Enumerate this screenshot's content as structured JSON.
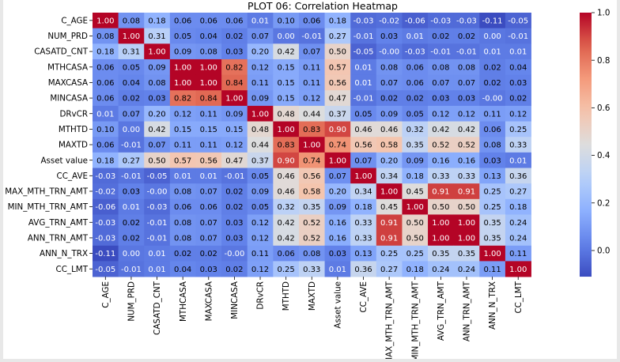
{
  "chart_data": {
    "type": "heatmap",
    "title": "PLOT 06: Correlation Heatmap",
    "xlabel": "",
    "ylabel": "",
    "colormap": "coolwarm",
    "vmin": -0.11,
    "vmax": 1.0,
    "colorbar_ticks": [
      "0.0",
      "0.2",
      "0.4",
      "0.6",
      "0.8",
      "1.0"
    ],
    "annot_text_light": "#ffffff",
    "annot_text_dark": "#000000",
    "labels": [
      "C_AGE",
      "NUM_PRD",
      "CASATD_CNT",
      "MTHCASA",
      "MAXCASA",
      "MINCASA",
      "DRvCR",
      "MTHTD",
      "MAXTD",
      "Asset value",
      "CC_AVE",
      "MAX_MTH_TRN_AMT",
      "MIN_MTH_TRN_AMT",
      "AVG_TRN_AMT",
      "ANN_TRN_AMT",
      "ANN_N_TRX",
      "CC_LMT"
    ],
    "matrix": [
      [
        "1.00",
        "0.08",
        "0.18",
        "0.06",
        "0.06",
        "0.06",
        "0.01",
        "0.10",
        "0.06",
        "0.18",
        "-0.03",
        "-0.02",
        "-0.06",
        "-0.03",
        "-0.03",
        "-0.11",
        "-0.05"
      ],
      [
        "0.08",
        "1.00",
        "0.31",
        "0.05",
        "0.04",
        "0.02",
        "0.07",
        "0.00",
        "-0.01",
        "0.27",
        "-0.01",
        "0.03",
        "0.01",
        "0.02",
        "0.02",
        "0.00",
        "-0.01"
      ],
      [
        "0.18",
        "0.31",
        "1.00",
        "0.09",
        "0.08",
        "0.03",
        "0.20",
        "0.42",
        "0.07",
        "0.50",
        "-0.05",
        "-0.00",
        "-0.03",
        "-0.01",
        "-0.01",
        "0.01",
        "0.01"
      ],
      [
        "0.06",
        "0.05",
        "0.09",
        "1.00",
        "1.00",
        "0.82",
        "0.12",
        "0.15",
        "0.11",
        "0.57",
        "0.01",
        "0.08",
        "0.06",
        "0.08",
        "0.08",
        "0.02",
        "0.04"
      ],
      [
        "0.06",
        "0.04",
        "0.08",
        "1.00",
        "1.00",
        "0.84",
        "0.11",
        "0.15",
        "0.11",
        "0.56",
        "0.01",
        "0.07",
        "0.06",
        "0.07",
        "0.07",
        "0.02",
        "0.03"
      ],
      [
        "0.06",
        "0.02",
        "0.03",
        "0.82",
        "0.84",
        "1.00",
        "0.09",
        "0.15",
        "0.12",
        "0.47",
        "-0.01",
        "0.02",
        "0.02",
        "0.03",
        "0.03",
        "-0.00",
        "0.02"
      ],
      [
        "0.01",
        "0.07",
        "0.20",
        "0.12",
        "0.11",
        "0.09",
        "1.00",
        "0.48",
        "0.44",
        "0.37",
        "0.05",
        "0.09",
        "0.05",
        "0.12",
        "0.12",
        "0.11",
        "0.12"
      ],
      [
        "0.10",
        "0.00",
        "0.42",
        "0.15",
        "0.15",
        "0.15",
        "0.48",
        "1.00",
        "0.83",
        "0.90",
        "0.46",
        "0.46",
        "0.32",
        "0.42",
        "0.42",
        "0.06",
        "0.25"
      ],
      [
        "0.06",
        "-0.01",
        "0.07",
        "0.11",
        "0.11",
        "0.12",
        "0.44",
        "0.83",
        "1.00",
        "0.74",
        "0.56",
        "0.58",
        "0.35",
        "0.52",
        "0.52",
        "0.08",
        "0.33"
      ],
      [
        "0.18",
        "0.27",
        "0.50",
        "0.57",
        "0.56",
        "0.47",
        "0.37",
        "0.90",
        "0.74",
        "1.00",
        "0.07",
        "0.20",
        "0.09",
        "0.16",
        "0.16",
        "0.03",
        "0.01"
      ],
      [
        "-0.03",
        "-0.01",
        "-0.05",
        "0.01",
        "0.01",
        "-0.01",
        "0.05",
        "0.46",
        "0.56",
        "0.07",
        "1.00",
        "0.34",
        "0.18",
        "0.33",
        "0.33",
        "0.13",
        "0.36"
      ],
      [
        "-0.02",
        "0.03",
        "-0.00",
        "0.08",
        "0.07",
        "0.02",
        "0.09",
        "0.46",
        "0.58",
        "0.20",
        "0.34",
        "1.00",
        "0.45",
        "0.91",
        "0.91",
        "0.25",
        "0.27"
      ],
      [
        "-0.06",
        "0.01",
        "-0.03",
        "0.06",
        "0.06",
        "0.02",
        "0.05",
        "0.32",
        "0.35",
        "0.09",
        "0.18",
        "0.45",
        "1.00",
        "0.50",
        "0.50",
        "0.25",
        "0.18"
      ],
      [
        "-0.03",
        "0.02",
        "-0.01",
        "0.08",
        "0.07",
        "0.03",
        "0.12",
        "0.42",
        "0.52",
        "0.16",
        "0.33",
        "0.91",
        "0.50",
        "1.00",
        "1.00",
        "0.35",
        "0.24"
      ],
      [
        "-0.03",
        "0.02",
        "-0.01",
        "0.08",
        "0.07",
        "0.03",
        "0.12",
        "0.42",
        "0.52",
        "0.16",
        "0.33",
        "0.91",
        "0.50",
        "1.00",
        "1.00",
        "0.35",
        "0.24"
      ],
      [
        "-0.11",
        "0.00",
        "0.01",
        "0.02",
        "0.02",
        "-0.00",
        "0.11",
        "0.06",
        "0.08",
        "0.03",
        "0.13",
        "0.25",
        "0.25",
        "0.35",
        "0.35",
        "1.00",
        "0.11"
      ],
      [
        "-0.05",
        "-0.01",
        "0.01",
        "0.04",
        "0.03",
        "0.02",
        "0.12",
        "0.25",
        "0.33",
        "0.01",
        "0.36",
        "0.27",
        "0.18",
        "0.24",
        "0.24",
        "0.11",
        "1.00"
      ]
    ]
  }
}
